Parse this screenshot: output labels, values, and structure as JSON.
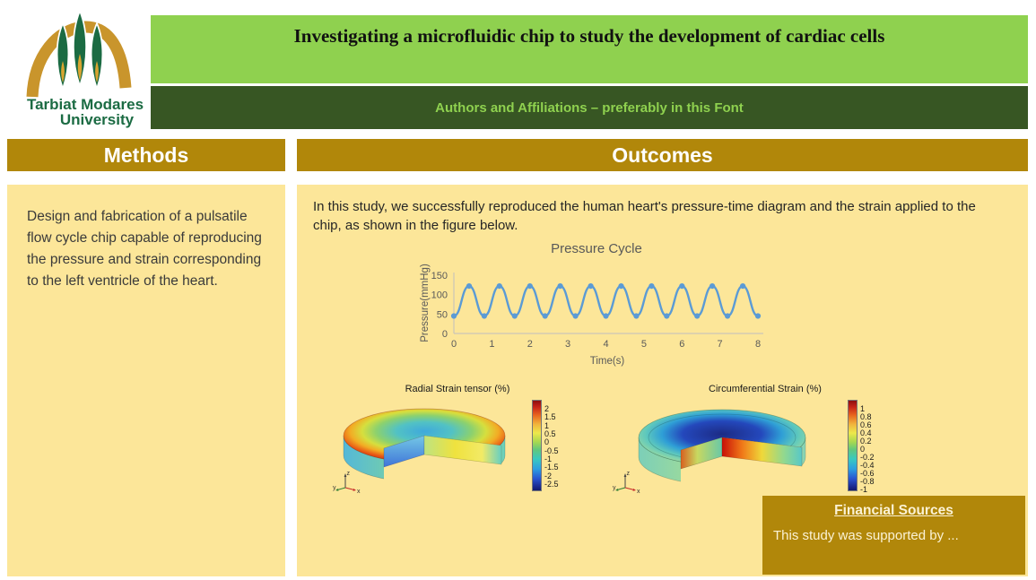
{
  "colors": {
    "light_green": "#8FD14F",
    "dark_green": "#375623",
    "gold": "#B1870A",
    "beige": "#FCE699",
    "cream": "#FBF2D5",
    "chart_line": "#5B9BD5",
    "logo_green": "#1B6B43",
    "logo_gold": "#C9952C"
  },
  "logo": {
    "line1": "Tarbiat Modares",
    "line2": "University"
  },
  "header": {
    "title": "Investigating a microfluidic chip to study the development of cardiac cells",
    "authors": "Authors and Affiliations – preferably in this Font"
  },
  "methods": {
    "heading": "Methods",
    "body": "Design and fabrication of a pulsatile flow cycle chip capable of reproducing the pressure and strain corresponding to the left ventricle of the heart."
  },
  "outcomes": {
    "heading": "Outcomes",
    "intro": "In this study, we successfully reproduced the human heart's pressure-time diagram and the strain applied to the chip, as shown in the figure below."
  },
  "financial": {
    "heading": "Financial Sources",
    "body": "This study was supported by ..."
  },
  "chart_data": [
    {
      "type": "line",
      "title": "Pressure Cycle",
      "xlabel": "Time(s)",
      "ylabel": "Pressure(mmHg)",
      "xlim": [
        0,
        8
      ],
      "ylim": [
        0,
        150
      ],
      "xticks": [
        0,
        1,
        2,
        3,
        4,
        5,
        6,
        7,
        8
      ],
      "yticks": [
        0,
        50,
        100,
        150
      ],
      "x": [
        0,
        0.4,
        0.8,
        1.2,
        1.6,
        2,
        2.4,
        2.8,
        3.2,
        3.6,
        4,
        4.4,
        4.8,
        5.2,
        5.6,
        6,
        6.4,
        6.8,
        7.2,
        7.6,
        8
      ],
      "y": [
        45,
        122,
        45,
        122,
        45,
        122,
        45,
        122,
        45,
        122,
        45,
        122,
        45,
        122,
        45,
        122,
        45,
        122,
        45,
        122,
        45
      ],
      "line_color": "#5B9BD5",
      "marker": "circle",
      "grid": false,
      "legend_position": "none"
    },
    {
      "type": "surface",
      "title": "Radial Strain tensor (%)",
      "colormap": "rainbow",
      "colorbar_ticks": [
        "2",
        "1.5",
        "1",
        "0.5",
        "0",
        "-0.5",
        "-1",
        "-1.5",
        "-2",
        "-2.5"
      ],
      "axes_triad": [
        "z",
        "y",
        "x"
      ],
      "content": "3D cut disc: red (+2%) outer rim grading to cyan-blue center (-2.5%)"
    },
    {
      "type": "surface",
      "title": "Circumferential Strain (%)",
      "colormap": "rainbow",
      "colorbar_ticks": [
        "1",
        "0.8",
        "0.6",
        "0.4",
        "0.2",
        "0",
        "-0.2",
        "-0.4",
        "-0.6",
        "-0.8",
        "-1"
      ],
      "axes_triad": [
        "z",
        "y",
        "x"
      ],
      "content": "3D cut disc: green rim, dark blue center, red-hot stripe on cut cross-section"
    }
  ]
}
